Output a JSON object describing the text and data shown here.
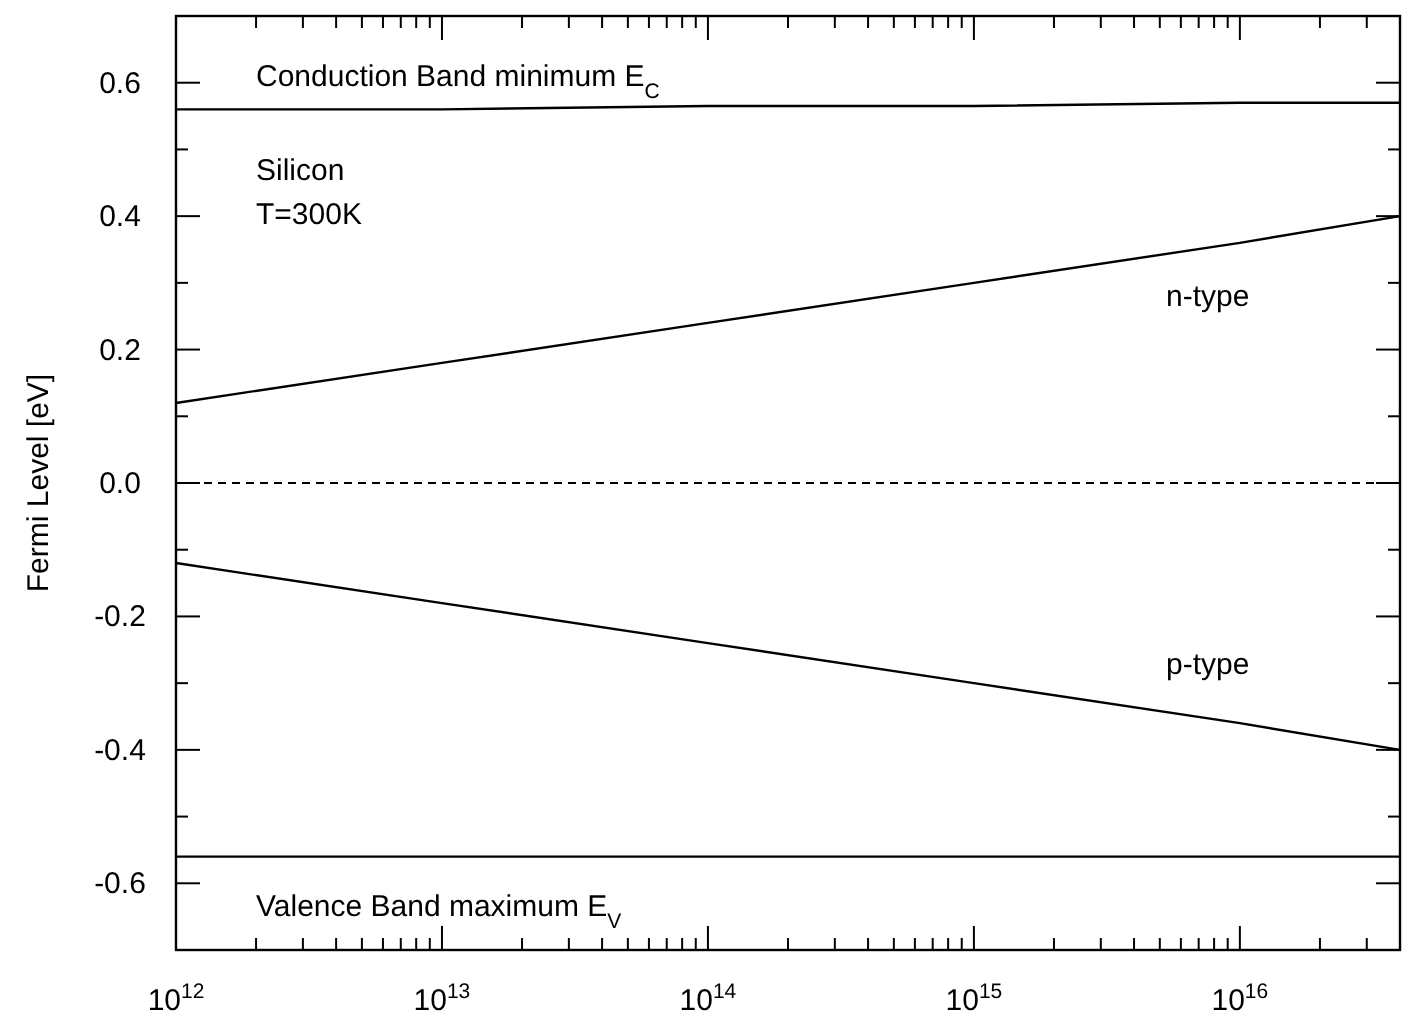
{
  "chart_data": {
    "type": "line",
    "ylabel": "Fermi Level [eV]",
    "log": "x",
    "grid": false,
    "line_style": "solid",
    "xlim": [
      1000000000000.0,
      4e+16
    ],
    "ylim": [
      -0.7,
      0.7
    ],
    "xticks": [
      {
        "value": 1000000000000.0,
        "label": "10$^{12}$"
      },
      {
        "value": 2000000000000.0,
        "label": null
      },
      {
        "value": 3000000000000.0,
        "label": null
      },
      {
        "value": 4000000000000.0,
        "label": null
      },
      {
        "value": 5000000000000.0,
        "label": null
      },
      {
        "value": 6000000000000.0,
        "label": null
      },
      {
        "value": 7000000000000.0,
        "label": null
      },
      {
        "value": 8000000000000.0,
        "label": null
      },
      {
        "value": 9000000000000.0,
        "label": null
      },
      {
        "value": 10000000000000.0,
        "label": "10$^{13}$"
      },
      {
        "value": 20000000000000.0,
        "label": null
      },
      {
        "value": 30000000000000.0,
        "label": null
      },
      {
        "value": 40000000000000.0,
        "label": null
      },
      {
        "value": 50000000000000.0,
        "label": null
      },
      {
        "value": 60000000000000.0,
        "label": null
      },
      {
        "value": 70000000000000.0,
        "label": null
      },
      {
        "value": 80000000000000.0,
        "label": null
      },
      {
        "value": 90000000000000.0,
        "label": null
      },
      {
        "value": 100000000000000.0,
        "label": "10$^{14}$"
      },
      {
        "value": 200000000000000.0,
        "label": null
      },
      {
        "value": 300000000000000.0,
        "label": null
      },
      {
        "value": 400000000000000.0,
        "label": null
      },
      {
        "value": 500000000000000.0,
        "label": null
      },
      {
        "value": 600000000000000.0,
        "label": null
      },
      {
        "value": 700000000000000.0,
        "label": null
      },
      {
        "value": 800000000000000.0,
        "label": null
      },
      {
        "value": 900000000000000.0,
        "label": null
      },
      {
        "value": 1000000000000000.0,
        "label": "10$^{15}$"
      },
      {
        "value": 2000000000000000.0,
        "label": null
      },
      {
        "value": 3000000000000000.0,
        "label": null
      },
      {
        "value": 4000000000000000.0,
        "label": null
      },
      {
        "value": 5000000000000000.0,
        "label": null
      },
      {
        "value": 6000000000000000.0,
        "label": null
      },
      {
        "value": 7000000000000000.0,
        "label": null
      },
      {
        "value": 8000000000000000.0,
        "label": null
      },
      {
        "value": 9000000000000000.0,
        "label": null
      },
      {
        "value": 1e+16,
        "label": "10$^{16}$"
      },
      {
        "value": 2e+16,
        "label": null
      },
      {
        "value": 3e+16,
        "label": null
      },
      {
        "value": 4e+16,
        "label": null
      }
    ],
    "yticks": [
      {
        "value": -0.7,
        "label": null
      },
      {
        "value": -0.6,
        "label": "-0.6"
      },
      {
        "value": -0.5,
        "label": null
      },
      {
        "value": -0.4,
        "label": "-0.4"
      },
      {
        "value": -0.3,
        "label": null
      },
      {
        "value": -0.2,
        "label": "-0.2"
      },
      {
        "value": -0.1,
        "label": null
      },
      {
        "value": 0,
        "label": "0.0"
      },
      {
        "value": 0.1,
        "label": null
      },
      {
        "value": 0.2,
        "label": "0.2"
      },
      {
        "value": 0.3,
        "label": null
      },
      {
        "value": 0.4,
        "label": "0.4"
      },
      {
        "value": 0.5,
        "label": null
      },
      {
        "value": 0.6,
        "label": "0.6"
      }
    ],
    "series": [
      {
        "color": "#000000",
        "x": [
          1000000000000.0,
          10000000000000.0,
          100000000000000.0,
          1000000000000000.0,
          1e+16,
          4e+16
        ],
        "values": [
          0.56,
          0.56,
          0.565,
          0.565,
          0.57,
          0.57
        ]
      },
      {
        "color": "#000000",
        "x": [
          1000000000000.0,
          10000000000000.0,
          100000000000000.0,
          1000000000000000.0,
          1e+16,
          4e+16
        ],
        "values": [
          0.12,
          0.18,
          0.24,
          0.3,
          0.36,
          0.4
        ]
      },
      {
        "color": "#000000",
        "x": [
          1000000000000.0,
          10000000000000.0,
          100000000000000.0,
          1000000000000000.0,
          1e+16,
          4e+16
        ],
        "values": [
          -0.12,
          -0.18,
          -0.24,
          -0.3,
          -0.36,
          -0.4
        ]
      },
      {
        "color": "#000000",
        "x": [
          1000000000000.0,
          10000000000000.0,
          100000000000000.0,
          1000000000000000.0,
          1e+16,
          4e+16
        ],
        "values": [
          -0.56,
          -0.56,
          -0.56,
          -0.56,
          -0.56,
          -0.56
        ]
      }
    ],
    "ref_lines": [
      {
        "axis": "y",
        "value": 0,
        "color": "#000000",
        "line_style": "dashed"
      }
    ],
    "annotations": [
      "Conduction Band minimum E$_{C}$",
      "Silicon",
      "T=300K",
      "n-type",
      "p-type",
      "Valence Band maximum E$_{V}$"
    ]
  }
}
